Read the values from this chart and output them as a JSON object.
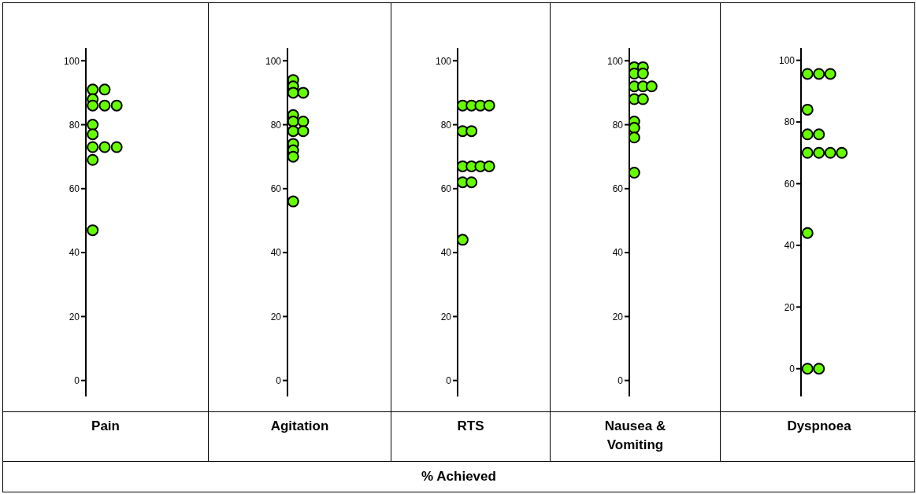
{
  "chart_data": [
    {
      "type": "scatter",
      "categories": [
        "Pain"
      ],
      "annotations": [
        "% Achieved"
      ],
      "ylim": [
        -5,
        104
      ],
      "yticks": [
        0,
        20,
        40,
        60,
        80,
        100
      ],
      "grid": false,
      "legend": false,
      "marker": "circle",
      "series": [
        {
          "color": "#66ff00",
          "x": [
            "Pain",
            "Pain",
            "Pain",
            "Pain",
            "Pain",
            "Pain",
            "Pain",
            "Pain",
            "Pain",
            "Pain",
            "Pain",
            "Pain",
            "Pain"
          ],
          "values": [
            91,
            91,
            88,
            86,
            86,
            86,
            80,
            77,
            73,
            73,
            73,
            69,
            47
          ]
        }
      ]
    },
    {
      "type": "scatter",
      "categories": [
        "Agitation"
      ],
      "ylim": [
        -5,
        104
      ],
      "yticks": [
        0,
        20,
        40,
        60,
        80,
        100
      ],
      "grid": false,
      "legend": false,
      "marker": "circle",
      "series": [
        {
          "color": "#66ff00",
          "x": [
            "Agitation",
            "Agitation",
            "Agitation",
            "Agitation",
            "Agitation",
            "Agitation",
            "Agitation",
            "Agitation",
            "Agitation",
            "Agitation",
            "Agitation",
            "Agitation",
            "Agitation"
          ],
          "values": [
            94,
            92,
            90,
            90,
            83,
            81,
            81,
            78,
            78,
            74,
            72,
            70,
            56
          ]
        }
      ]
    },
    {
      "type": "scatter",
      "categories": [
        "RTS"
      ],
      "ylim": [
        -5,
        104
      ],
      "yticks": [
        0,
        20,
        40,
        60,
        80,
        100
      ],
      "grid": false,
      "legend": false,
      "marker": "circle",
      "series": [
        {
          "color": "#66ff00",
          "x": [
            "RTS",
            "RTS",
            "RTS",
            "RTS",
            "RTS",
            "RTS",
            "RTS",
            "RTS",
            "RTS",
            "RTS",
            "RTS",
            "RTS",
            "RTS"
          ],
          "values": [
            86,
            86,
            86,
            86,
            78,
            78,
            67,
            67,
            67,
            67,
            62,
            62,
            44
          ]
        }
      ]
    },
    {
      "type": "scatter",
      "categories": [
        "Nausea & Vomiting"
      ],
      "ylim": [
        -5,
        104
      ],
      "yticks": [
        0,
        20,
        40,
        60,
        80,
        100
      ],
      "grid": false,
      "legend": false,
      "marker": "circle",
      "series": [
        {
          "color": "#66ff00",
          "x": [
            "Nausea & Vomiting",
            "Nausea & Vomiting",
            "Nausea & Vomiting",
            "Nausea & Vomiting",
            "Nausea & Vomiting",
            "Nausea & Vomiting",
            "Nausea & Vomiting",
            "Nausea & Vomiting",
            "Nausea & Vomiting",
            "Nausea & Vomiting",
            "Nausea & Vomiting",
            "Nausea & Vomiting",
            "Nausea & Vomiting"
          ],
          "values": [
            98,
            98,
            96,
            96,
            92,
            92,
            92,
            88,
            88,
            81,
            79,
            76,
            65
          ]
        }
      ]
    },
    {
      "type": "scatter",
      "categories": [
        "Dyspnoea"
      ],
      "ylim": [
        -9,
        104
      ],
      "yticks": [
        0,
        20,
        40,
        60,
        80,
        100
      ],
      "grid": false,
      "legend": false,
      "marker": "circle",
      "series": [
        {
          "color": "#66ff00",
          "x": [
            "Dyspnoea",
            "Dyspnoea",
            "Dyspnoea",
            "Dyspnoea",
            "Dyspnoea",
            "Dyspnoea",
            "Dyspnoea",
            "Dyspnoea",
            "Dyspnoea",
            "Dyspnoea",
            "Dyspnoea",
            "Dyspnoea",
            "Dyspnoea"
          ],
          "values": [
            95.6,
            95.6,
            95.6,
            84,
            76,
            76,
            70,
            70,
            70,
            70,
            44,
            0,
            0
          ]
        }
      ]
    }
  ]
}
